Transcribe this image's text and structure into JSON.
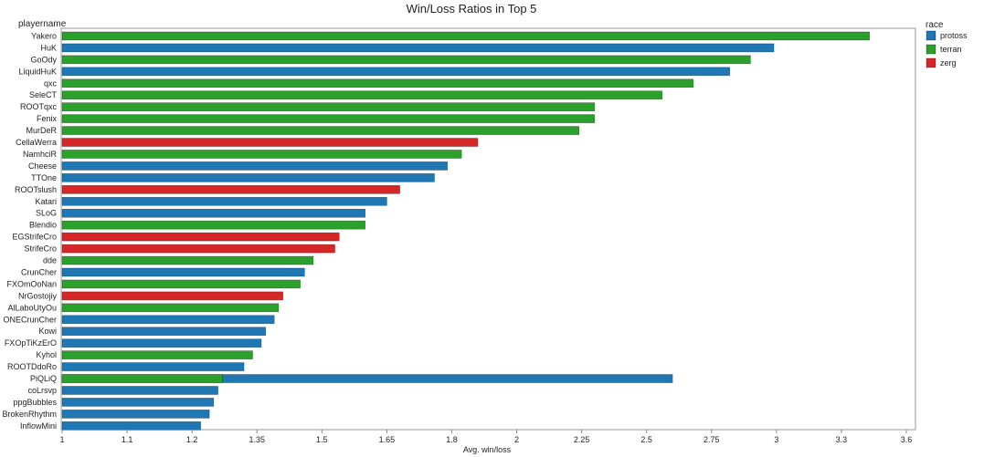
{
  "chart_data": {
    "type": "bar",
    "orientation": "horizontal",
    "title": "Win/Loss Ratios in Top 5",
    "xlabel": "Avg. win/loss",
    "ylabel": "playername",
    "xlim": [
      1,
      3.6
    ],
    "x_ticks": [
      "1",
      "1.1",
      "1.2",
      "1.35",
      "1.5",
      "1.65",
      "1.8",
      "2",
      "2.25",
      "2.5",
      "2.75",
      "3",
      "3.3",
      "3.6"
    ],
    "grid": false,
    "legend": {
      "title": "race",
      "placement": "top-right",
      "entries": [
        {
          "name": "protoss",
          "color": "#1f77b4"
        },
        {
          "name": "terran",
          "color": "#2ca02c"
        },
        {
          "name": "zerg",
          "color": "#d62728"
        }
      ]
    },
    "categories": [
      "Yakero",
      "HuK",
      "GoOdy",
      "LiquidHuK",
      "qxc",
      "SeleCT",
      "ROOTqxc",
      "Fenix",
      "MurDeR",
      "CellaWerra",
      "NamhciR",
      "Cheese",
      "TTOne",
      "ROOTslush",
      "Katari",
      "SLoG",
      "Blendio",
      "EGStrifeCro",
      "StrifeCro",
      "dde",
      "CrunCher",
      "FXOmOoNan",
      "NrGostojiy",
      "AlLaboUtyOu",
      "ONECrunCher",
      "Kowi",
      "FXOpTiKzErO",
      "Kyhol",
      "ROOTDdoRo",
      "PiQLiQ",
      "coLrsvp",
      "ppgBubbles",
      "BrokenRhythm",
      "InflowMini"
    ],
    "bars": [
      {
        "race": "terran",
        "value": 3.43
      },
      {
        "race": "protoss",
        "value": 2.99
      },
      {
        "race": "terran",
        "value": 2.9
      },
      {
        "race": "protoss",
        "value": 2.82
      },
      {
        "race": "terran",
        "value": 2.68
      },
      {
        "race": "terran",
        "value": 2.56
      },
      {
        "race": "terran",
        "value": 2.3
      },
      {
        "race": "terran",
        "value": 2.3
      },
      {
        "race": "terran",
        "value": 2.24
      },
      {
        "race": "zerg",
        "value": 1.88
      },
      {
        "race": "terran",
        "value": 1.83
      },
      {
        "race": "protoss",
        "value": 1.79
      },
      {
        "race": "protoss",
        "value": 1.76
      },
      {
        "race": "zerg",
        "value": 1.68
      },
      {
        "race": "protoss",
        "value": 1.65
      },
      {
        "race": "protoss",
        "value": 1.6
      },
      {
        "race": "terran",
        "value": 1.6
      },
      {
        "race": "zerg",
        "value": 1.54
      },
      {
        "race": "zerg",
        "value": 1.53
      },
      {
        "race": "terran",
        "value": 1.48
      },
      {
        "race": "protoss",
        "value": 1.46
      },
      {
        "race": "terran",
        "value": 1.45
      },
      {
        "race": "zerg",
        "value": 1.41
      },
      {
        "race": "terran",
        "value": 1.4
      },
      {
        "race": "protoss",
        "value": 1.39
      },
      {
        "race": "protoss",
        "value": 1.37
      },
      {
        "race": "protoss",
        "value": 1.36
      },
      {
        "race": "terran",
        "value": 1.34
      },
      {
        "race": "protoss",
        "value": 1.32
      },
      {
        "race": "protoss",
        "value": 2.6,
        "overlay": {
          "race": "terran",
          "value": 1.27
        }
      },
      {
        "race": "protoss",
        "value": 1.26
      },
      {
        "race": "protoss",
        "value": 1.25
      },
      {
        "race": "protoss",
        "value": 1.24
      },
      {
        "race": "protoss",
        "value": 1.22
      }
    ]
  }
}
